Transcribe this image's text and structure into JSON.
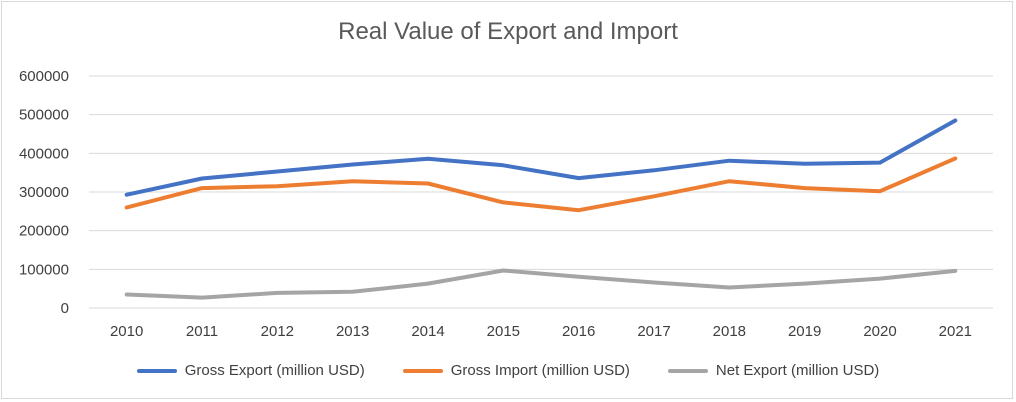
{
  "chart_data": {
    "type": "line",
    "title": "Real Value of Export and Import",
    "xlabel": "",
    "ylabel": "",
    "categories": [
      "2010",
      "2011",
      "2012",
      "2013",
      "2014",
      "2015",
      "2016",
      "2017",
      "2018",
      "2019",
      "2020",
      "2021"
    ],
    "ylim": [
      0,
      600000
    ],
    "yticks": [
      "0",
      "100000",
      "200000",
      "300000",
      "400000",
      "500000",
      "600000"
    ],
    "grid": true,
    "legend_position": "bottom",
    "series": [
      {
        "name": "Gross Export (million USD)",
        "color": "#4472c4",
        "values": [
          293000,
          335000,
          353000,
          371000,
          386000,
          369000,
          336000,
          356000,
          381000,
          373000,
          376000,
          485000
        ]
      },
      {
        "name": "Gross Import (million USD)",
        "color": "#ed7d31",
        "values": [
          260000,
          310000,
          315000,
          328000,
          322000,
          273000,
          253000,
          289000,
          328000,
          310000,
          302000,
          387000
        ]
      },
      {
        "name": "Net Export (million USD)",
        "color": "#a5a5a5",
        "values": [
          35000,
          27000,
          39000,
          42000,
          63000,
          97000,
          81000,
          66000,
          53000,
          63000,
          76000,
          96000
        ]
      }
    ]
  }
}
